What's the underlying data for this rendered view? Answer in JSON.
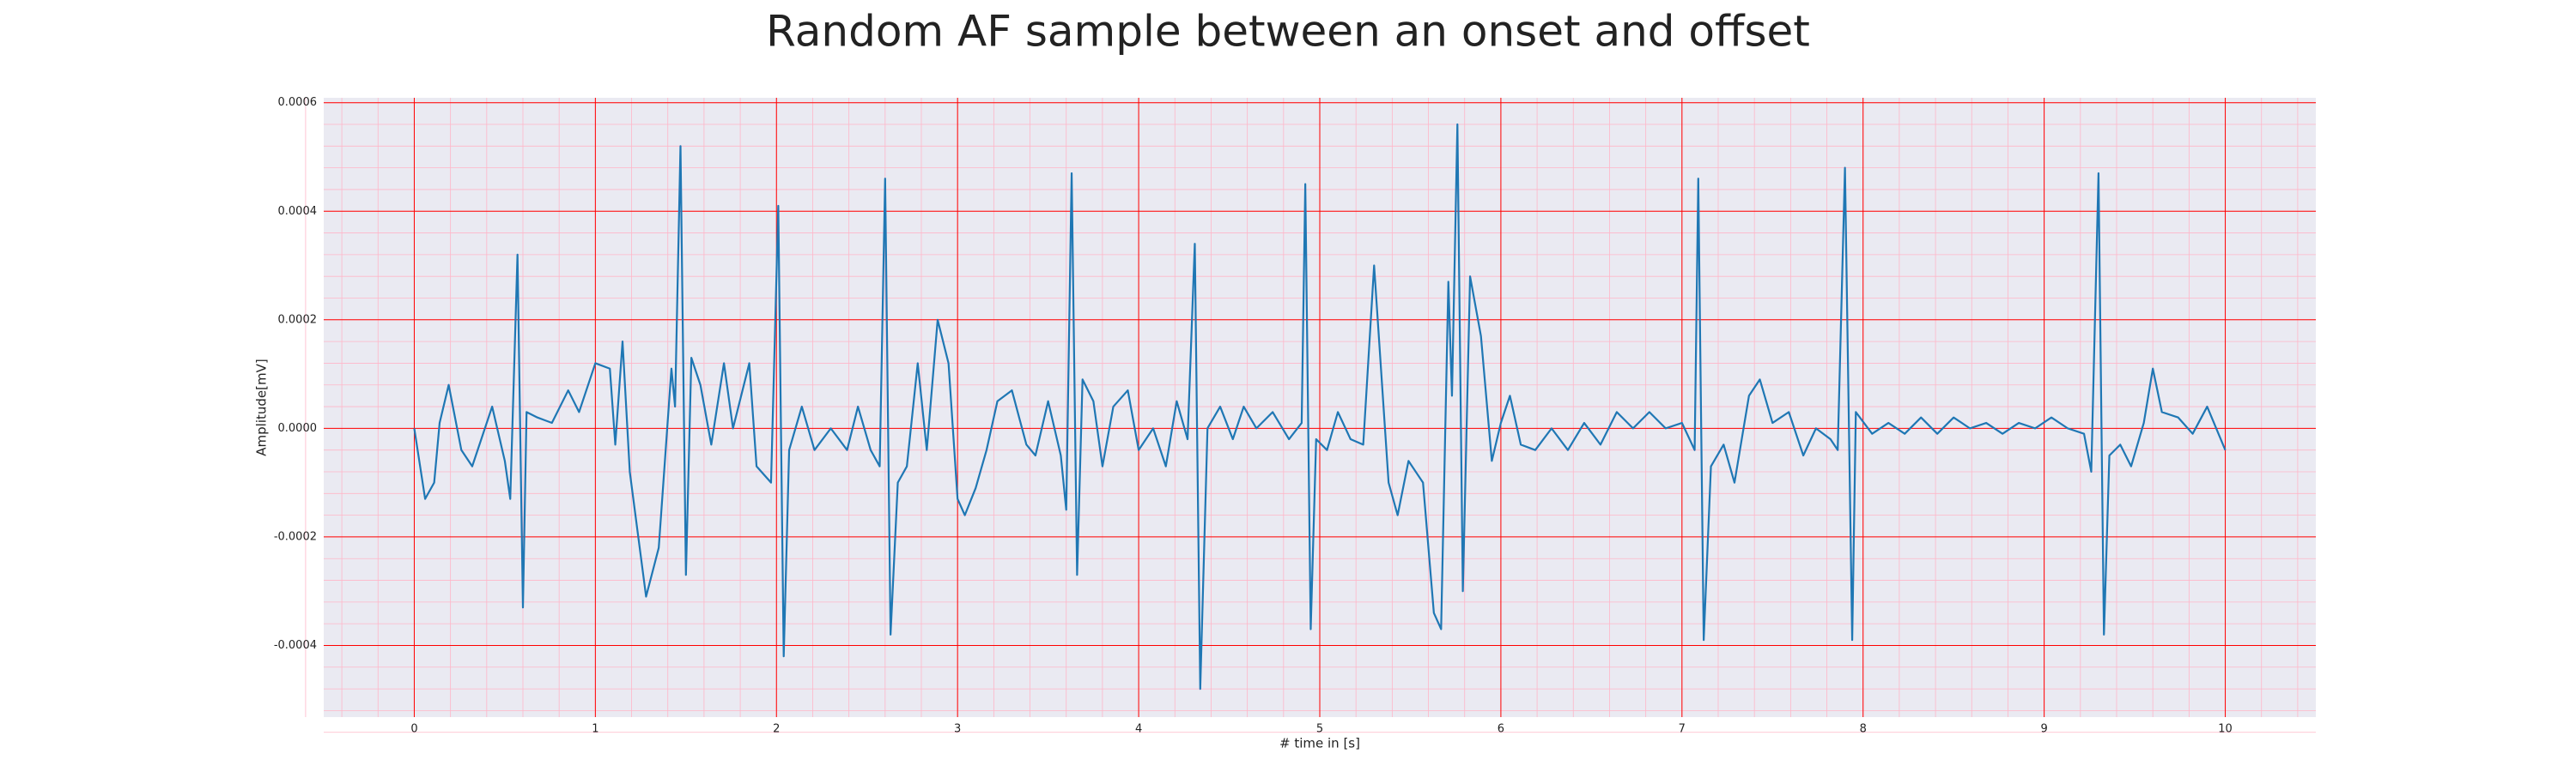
{
  "chart_data": {
    "type": "line",
    "title": "Random AF sample between an onset and offset",
    "x_label": "# time in [s]",
    "y_label": "Amplitude[mV]",
    "xlim": [
      -0.5,
      10.5
    ],
    "ylim": [
      -0.000532,
      0.000609
    ],
    "xticks": [
      0,
      1,
      2,
      3,
      4,
      5,
      6,
      7,
      8,
      9,
      10
    ],
    "yticks": [
      {
        "value": -0.0004,
        "label": "-0.0004"
      },
      {
        "value": -0.0002,
        "label": "-0.0002"
      },
      {
        "value": 0,
        "label": "0.0000"
      },
      {
        "value": 0.0002,
        "label": "0.0002"
      },
      {
        "value": 0.0004,
        "label": "0.0004"
      },
      {
        "value": 0.0006,
        "label": "0.0006"
      }
    ],
    "grid": true,
    "grid_color": "#ff0000",
    "minor_grid_color": "#ffb6c8",
    "background": "#eaeaf2",
    "series": [
      {
        "color": "#1f77b4",
        "x": [
          0,
          0.06,
          0.11,
          0.14,
          0.19,
          0.26,
          0.32,
          0.43,
          0.5,
          0.53,
          0.57,
          0.6,
          0.62,
          0.68,
          0.76,
          0.85,
          0.91,
          1.0,
          1.08,
          1.11,
          1.15,
          1.19,
          1.28,
          1.35,
          1.42,
          1.44,
          1.47,
          1.5,
          1.53,
          1.58,
          1.64,
          1.71,
          1.76,
          1.85,
          1.89,
          1.97,
          2.01,
          2.04,
          2.07,
          2.14,
          2.21,
          2.3,
          2.39,
          2.45,
          2.52,
          2.57,
          2.6,
          2.63,
          2.67,
          2.72,
          2.78,
          2.83,
          2.89,
          2.95,
          3.0,
          3.04,
          3.1,
          3.16,
          3.22,
          3.3,
          3.38,
          3.43,
          3.5,
          3.57,
          3.6,
          3.63,
          3.66,
          3.69,
          3.75,
          3.8,
          3.86,
          3.94,
          4.0,
          4.08,
          4.15,
          4.21,
          4.27,
          4.31,
          4.34,
          4.38,
          4.45,
          4.52,
          4.58,
          4.65,
          4.74,
          4.83,
          4.9,
          4.92,
          4.95,
          4.98,
          5.04,
          5.1,
          5.17,
          5.24,
          5.3,
          5.38,
          5.43,
          5.49,
          5.57,
          5.63,
          5.67,
          5.71,
          5.73,
          5.76,
          5.79,
          5.83,
          5.89,
          5.95,
          6.0,
          6.05,
          6.11,
          6.19,
          6.28,
          6.37,
          6.46,
          6.55,
          6.64,
          6.73,
          6.82,
          6.91,
          7.0,
          7.07,
          7.09,
          7.12,
          7.16,
          7.23,
          7.29,
          7.37,
          7.43,
          7.5,
          7.59,
          7.67,
          7.74,
          7.82,
          7.86,
          7.9,
          7.94,
          7.96,
          8.05,
          8.14,
          8.23,
          8.32,
          8.41,
          8.5,
          8.59,
          8.68,
          8.77,
          8.86,
          8.95,
          9.04,
          9.13,
          9.22,
          9.26,
          9.3,
          9.33,
          9.36,
          9.42,
          9.48,
          9.55,
          9.6,
          9.65,
          9.74,
          9.82,
          9.9,
          10.0
        ],
        "values": [
          0,
          -0.00013,
          -0.0001,
          1e-05,
          8e-05,
          -4e-05,
          -7e-05,
          4e-05,
          -6e-05,
          -0.00013,
          0.00032,
          -0.00033,
          3e-05,
          2e-05,
          1e-05,
          7e-05,
          3e-05,
          0.00012,
          0.00011,
          -3e-05,
          0.00016,
          -8e-05,
          -0.00031,
          -0.00022,
          0.00011,
          4e-05,
          0.00052,
          -0.00027,
          0.00013,
          8e-05,
          -3e-05,
          0.00012,
          0,
          0.00012,
          -7e-05,
          -0.0001,
          0.00041,
          -0.00042,
          -4e-05,
          4e-05,
          -4e-05,
          0,
          -4e-05,
          4e-05,
          -4e-05,
          -7e-05,
          0.00046,
          -0.00038,
          -0.0001,
          -7e-05,
          0.00012,
          -4e-05,
          0.0002,
          0.00012,
          -0.00013,
          -0.00016,
          -0.00011,
          -4e-05,
          5e-05,
          7e-05,
          -3e-05,
          -5e-05,
          5e-05,
          -5e-05,
          -0.00015,
          0.00047,
          -0.00027,
          9e-05,
          5e-05,
          -7e-05,
          4e-05,
          7e-05,
          -4e-05,
          0,
          -7e-05,
          5e-05,
          -2e-05,
          0.00034,
          -0.00048,
          0,
          4e-05,
          -2e-05,
          4e-05,
          0,
          3e-05,
          -2e-05,
          1e-05,
          0.00045,
          -0.00037,
          -2e-05,
          -4e-05,
          3e-05,
          -2e-05,
          -3e-05,
          0.0003,
          -0.0001,
          -0.00016,
          -6e-05,
          -0.0001,
          -0.00034,
          -0.00037,
          0.00027,
          6e-05,
          0.00056,
          -0.0003,
          0.00028,
          0.00017,
          -6e-05,
          1e-05,
          6e-05,
          -3e-05,
          -4e-05,
          0,
          -4e-05,
          1e-05,
          -3e-05,
          3e-05,
          0,
          3e-05,
          0,
          1e-05,
          -4e-05,
          0.00046,
          -0.00039,
          -7e-05,
          -3e-05,
          -0.0001,
          6e-05,
          9e-05,
          1e-05,
          3e-05,
          -5e-05,
          0,
          -2e-05,
          -4e-05,
          0.00048,
          -0.00039,
          3e-05,
          -1e-05,
          1e-05,
          -1e-05,
          2e-05,
          -1e-05,
          2e-05,
          0,
          1e-05,
          -1e-05,
          1e-05,
          0,
          2e-05,
          0,
          -1e-05,
          -8e-05,
          0.00047,
          -0.00038,
          -5e-05,
          -3e-05,
          -7e-05,
          1e-05,
          0.00011,
          3e-05,
          2e-05,
          -1e-05,
          4e-05,
          -4e-05
        ]
      }
    ]
  }
}
